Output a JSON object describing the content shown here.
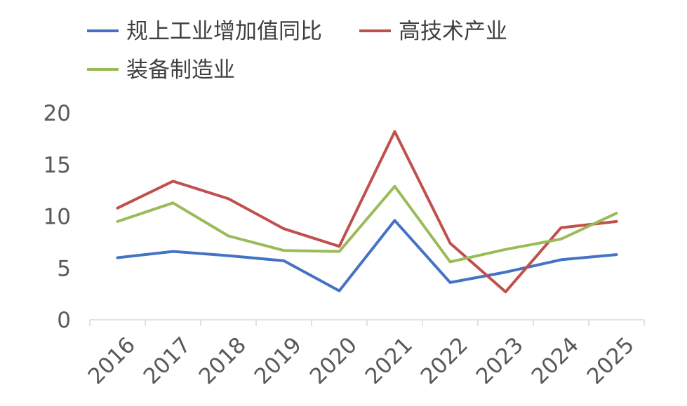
{
  "chart_data": {
    "type": "line",
    "categories": [
      "2016",
      "2017",
      "2018",
      "2019",
      "2020",
      "2021",
      "2022",
      "2023",
      "2024",
      "2025"
    ],
    "series": [
      {
        "name": "规上工业增加值同比",
        "color": "#4472C4",
        "values": [
          6.0,
          6.6,
          6.2,
          5.7,
          2.8,
          9.6,
          3.6,
          4.6,
          5.8,
          6.3
        ]
      },
      {
        "name": "高技术产业",
        "color": "#C0504D",
        "values": [
          10.8,
          13.4,
          11.7,
          8.8,
          7.1,
          18.2,
          7.4,
          2.7,
          8.9,
          9.5
        ]
      },
      {
        "name": "装备制造业",
        "color": "#9BBB59",
        "values": [
          9.5,
          11.3,
          8.1,
          6.7,
          6.6,
          12.9,
          5.6,
          6.8,
          7.8,
          10.3
        ]
      }
    ],
    "yticks": [
      "0",
      "5",
      "10",
      "15",
      "20"
    ],
    "ylim": [
      0,
      20
    ],
    "grid": false,
    "legend_position": "top-left"
  }
}
